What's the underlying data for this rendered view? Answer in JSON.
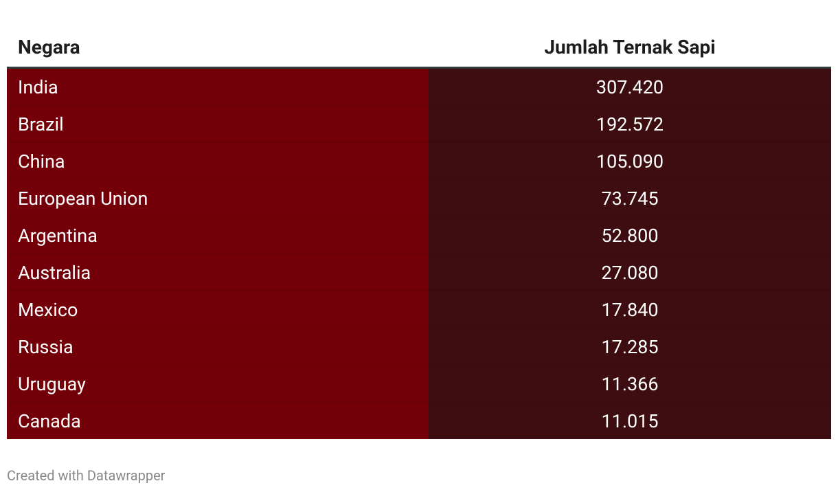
{
  "table": {
    "header": [
      "Negara",
      "Jumlah Ternak Sapi"
    ],
    "rows": [
      [
        "India",
        "307.420"
      ],
      [
        "Brazil",
        "192.572"
      ],
      [
        "China",
        "105.090"
      ],
      [
        "European Union",
        "73.745"
      ],
      [
        "Argentina",
        "52.800"
      ],
      [
        "Australia",
        "27.080"
      ],
      [
        "Mexico",
        "17.840"
      ],
      [
        "Russia",
        "17.285"
      ],
      [
        "Uruguay",
        "11.366"
      ],
      [
        "Canada",
        "11.015"
      ]
    ]
  },
  "footer": "Created with Datawrapper"
}
